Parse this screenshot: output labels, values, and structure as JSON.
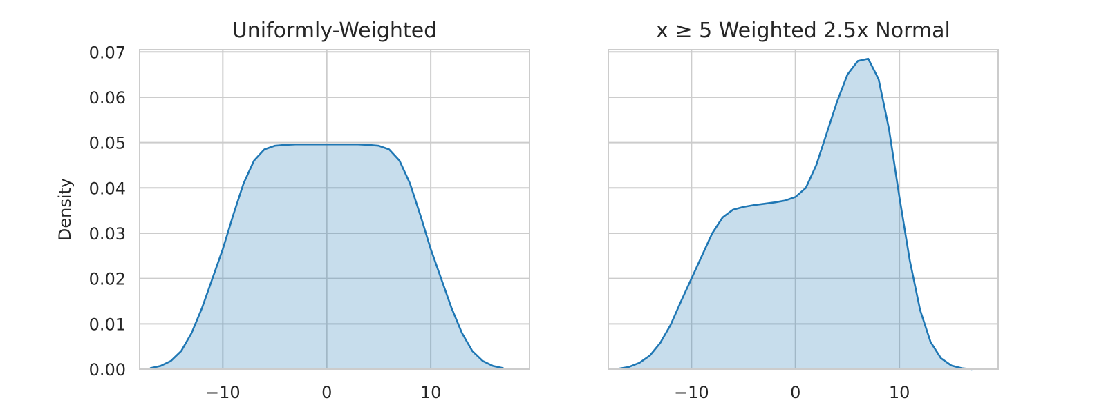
{
  "figure": {
    "grid": true,
    "fill_opacity": 0.25,
    "colors": {
      "line": "#1f77b4",
      "grid": "#cccccc",
      "text": "#262626",
      "background": "#ffffff"
    }
  },
  "chart_data": [
    {
      "type": "area",
      "title": "Uniformly-Weighted",
      "xlabel": "",
      "ylabel": "Density",
      "xlim": [
        -18,
        19.5
      ],
      "ylim": [
        0,
        0.0705
      ],
      "xticks": [
        -10,
        0,
        10
      ],
      "xtick_labels": [
        "−10",
        "0",
        "10"
      ],
      "yticks": [
        0,
        0.01,
        0.02,
        0.03,
        0.04,
        0.05,
        0.06,
        0.07
      ],
      "ytick_labels": [
        "0.00",
        "0.01",
        "0.02",
        "0.03",
        "0.04",
        "0.05",
        "0.06",
        "0.07"
      ],
      "series": [
        {
          "x": [
            -17,
            -16,
            -15,
            -14,
            -13,
            -12,
            -11,
            -10,
            -9,
            -8,
            -7,
            -6,
            -5,
            -4,
            -3,
            -2,
            -1,
            0,
            1,
            2,
            3,
            4,
            5,
            6,
            7,
            8,
            9,
            10,
            11,
            12,
            13,
            14,
            15,
            16,
            17
          ],
          "y": [
            0.0002,
            0.0007,
            0.0018,
            0.004,
            0.008,
            0.0135,
            0.02,
            0.0265,
            0.034,
            0.041,
            0.046,
            0.0485,
            0.0493,
            0.0495,
            0.0496,
            0.0496,
            0.0496,
            0.0496,
            0.0496,
            0.0496,
            0.0496,
            0.0495,
            0.0493,
            0.0485,
            0.046,
            0.041,
            0.034,
            0.0265,
            0.02,
            0.0135,
            0.008,
            0.004,
            0.0018,
            0.0007,
            0.0002
          ]
        }
      ]
    },
    {
      "type": "area",
      "title": "x ≥ 5 Weighted 2.5x Normal",
      "xlabel": "",
      "ylabel": "",
      "xlim": [
        -18,
        19.5
      ],
      "ylim": [
        0,
        0.0705
      ],
      "xticks": [
        -10,
        0,
        10
      ],
      "xtick_labels": [
        "−10",
        "0",
        "10"
      ],
      "yticks": [
        0,
        0.01,
        0.02,
        0.03,
        0.04,
        0.05,
        0.06,
        0.07
      ],
      "ytick_labels": [],
      "series": [
        {
          "x": [
            -17,
            -16,
            -15,
            -14,
            -13,
            -12,
            -11,
            -10,
            -9,
            -8,
            -7,
            -6,
            -5,
            -4,
            -3,
            -2,
            -1,
            0,
            1,
            2,
            3,
            4,
            5,
            6,
            7,
            8,
            9,
            10,
            11,
            12,
            13,
            14,
            15,
            16,
            17
          ],
          "y": [
            0.0001,
            0.0005,
            0.0014,
            0.003,
            0.0058,
            0.0098,
            0.015,
            0.02,
            0.025,
            0.03,
            0.0335,
            0.0352,
            0.0358,
            0.0362,
            0.0365,
            0.0368,
            0.0372,
            0.038,
            0.04,
            0.045,
            0.052,
            0.059,
            0.065,
            0.068,
            0.0685,
            0.064,
            0.053,
            0.038,
            0.024,
            0.013,
            0.006,
            0.0024,
            0.0008,
            0.0002,
            0.0
          ]
        }
      ]
    }
  ]
}
